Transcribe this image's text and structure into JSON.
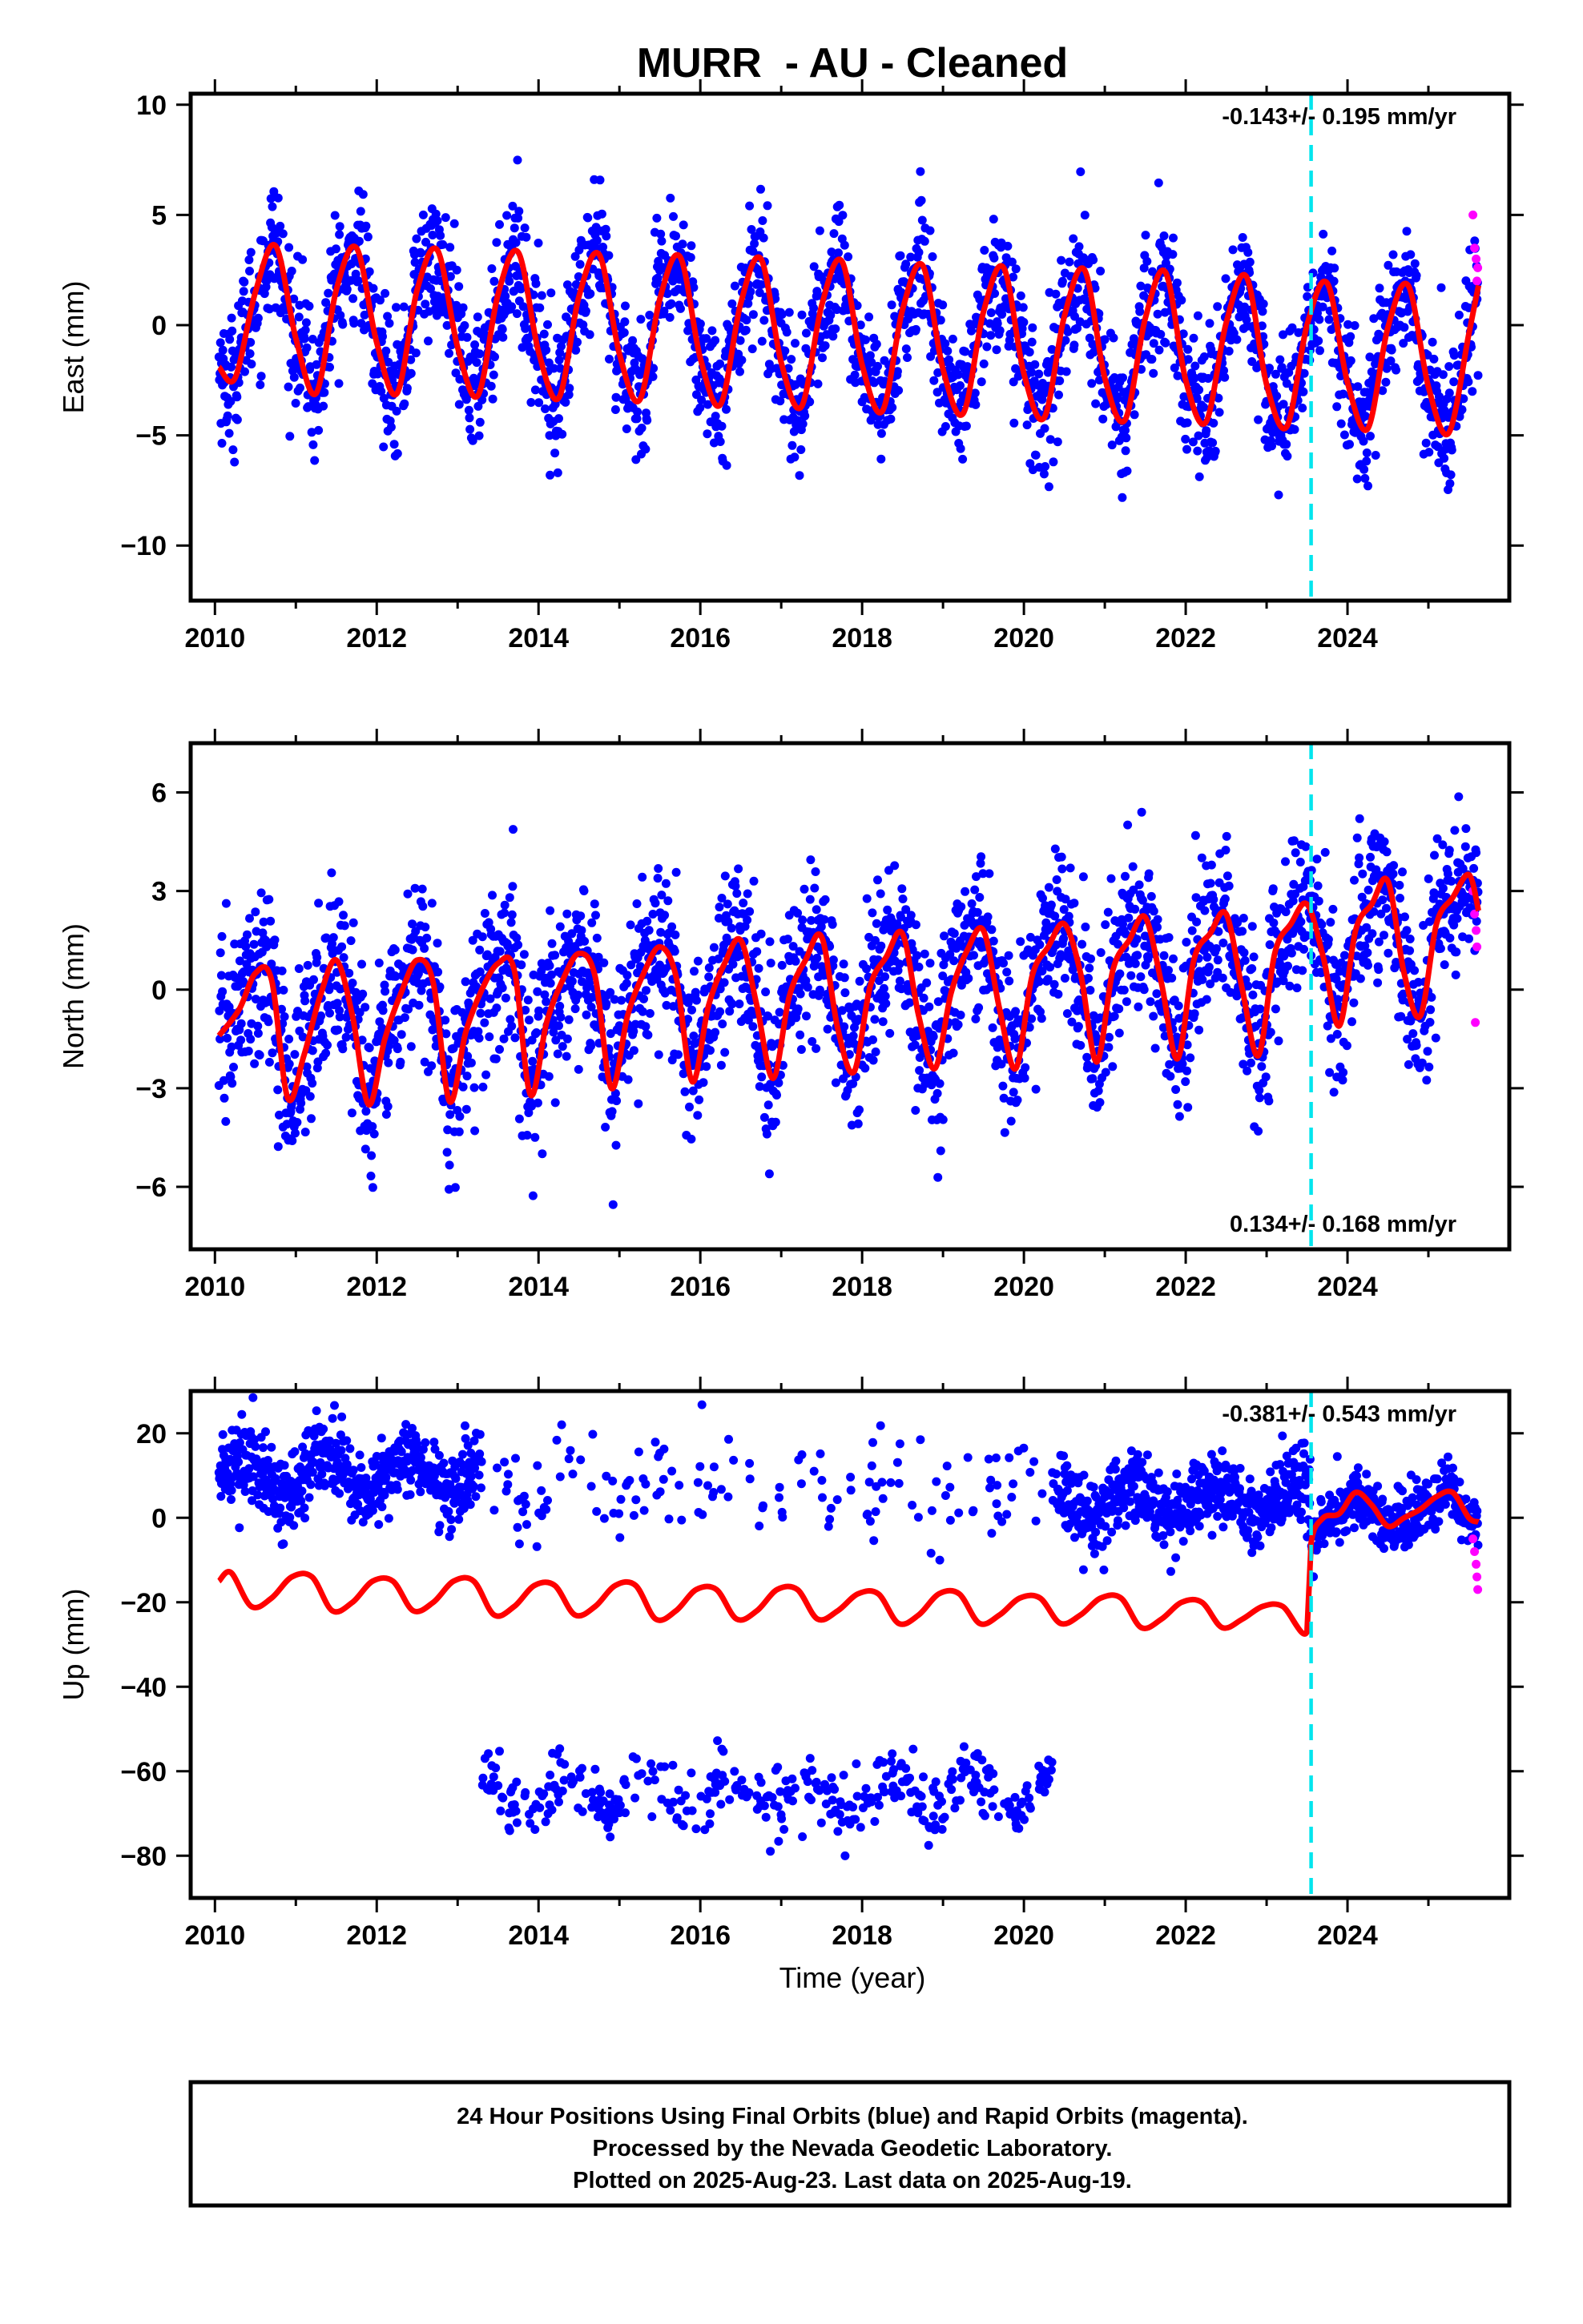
{
  "title": "MURR  - AU - Cleaned",
  "xlabel": "Time (year)",
  "footer": {
    "line1": "24 Hour Positions Using Final Orbits (blue) and Rapid Orbits (magenta).",
    "line2": "Processed by the Nevada Geodetic Laboratory.",
    "line3": "Plotted on 2025-Aug-23. Last data on 2025-Aug-19."
  },
  "colors": {
    "final_orbits": "#0000ff",
    "rapid_orbits": "#ff00ff",
    "model": "#ff0000",
    "equipment_change": "#00e5ee"
  },
  "chart_data": [
    {
      "type": "scatter",
      "name": "east",
      "ylabel": "East (mm)",
      "xlim": [
        2009.7,
        2026.0
      ],
      "ylim": [
        -12.5,
        10.5
      ],
      "xticks": [
        2010,
        2012,
        2014,
        2016,
        2018,
        2020,
        2022,
        2024
      ],
      "yticks": [
        -10,
        -5,
        0,
        5,
        10
      ],
      "rate_label": "-0.143+/- 0.195 mm/yr",
      "rate_position": "top-right",
      "discontinuity_year": 2023.55,
      "model": {
        "years": [
          2010.05,
          2010.25,
          2010.5,
          2010.75,
          2011.0,
          2011.25,
          2011.5,
          2011.75,
          2012.0,
          2012.25,
          2012.5,
          2012.75,
          2013.0,
          2013.25,
          2013.5,
          2013.75,
          2014.0,
          2014.25,
          2014.5,
          2014.75,
          2015.0,
          2015.25,
          2015.5,
          2015.75,
          2016.0,
          2016.25,
          2016.5,
          2016.75,
          2017.0,
          2017.25,
          2017.5,
          2017.75,
          2018.0,
          2018.25,
          2018.5,
          2018.75,
          2019.0,
          2019.25,
          2019.5,
          2019.75,
          2020.0,
          2020.25,
          2020.5,
          2020.75,
          2021.0,
          2021.25,
          2021.5,
          2021.75,
          2022.0,
          2022.25,
          2022.5,
          2022.75,
          2023.0,
          2023.25,
          2023.5,
          2023.75,
          2024.0,
          2024.25,
          2024.5,
          2024.75,
          2025.0,
          2025.25,
          2025.5,
          2025.62
        ],
        "values": [
          -1.9,
          -2.4,
          1.5,
          3.6,
          -0.6,
          -3.1,
          1.6,
          3.5,
          -0.8,
          -3.1,
          1.6,
          3.4,
          -1.0,
          -3.2,
          1.4,
          3.3,
          -1.2,
          -3.3,
          1.3,
          3.2,
          -1.3,
          -3.4,
          1.2,
          3.1,
          -1.5,
          -3.6,
          1.0,
          3.0,
          -1.7,
          -3.7,
          0.9,
          2.9,
          -1.8,
          -3.9,
          0.7,
          2.7,
          -2.0,
          -4.0,
          0.6,
          2.6,
          -2.2,
          -4.2,
          0.4,
          2.5,
          -2.4,
          -4.3,
          0.3,
          2.4,
          -2.5,
          -4.4,
          0.1,
          2.2,
          -2.7,
          -4.6,
          0.0,
          1.9,
          -2.6,
          -4.7,
          -0.1,
          1.8,
          -2.8,
          -4.9,
          -0.4,
          1.8
        ]
      },
      "rapid_points": [
        [
          2025.55,
          5.0
        ],
        [
          2025.57,
          3.5
        ],
        [
          2025.59,
          3.0
        ],
        [
          2025.61,
          2.6
        ],
        [
          2025.6,
          2.0
        ]
      ]
    },
    {
      "type": "scatter",
      "name": "north",
      "ylabel": "North (mm)",
      "xlim": [
        2009.7,
        2026.0
      ],
      "ylim": [
        -7.9,
        7.5
      ],
      "xticks": [
        2010,
        2012,
        2014,
        2016,
        2018,
        2020,
        2022,
        2024
      ],
      "yticks": [
        -6,
        -3,
        0,
        3,
        6
      ],
      "rate_label": "0.134+/- 0.168 mm/yr",
      "rate_position": "bottom-right",
      "discontinuity_year": 2023.55,
      "model": {
        "years": [
          2010.05,
          2010.3,
          2010.5,
          2010.7,
          2010.9,
          2011.1,
          2011.3,
          2011.5,
          2011.7,
          2011.9,
          2012.1,
          2012.3,
          2012.5,
          2012.7,
          2012.9,
          2013.1,
          2013.3,
          2013.5,
          2013.7,
          2013.9,
          2014.1,
          2014.3,
          2014.5,
          2014.7,
          2014.9,
          2015.1,
          2015.3,
          2015.5,
          2015.7,
          2015.9,
          2016.1,
          2016.3,
          2016.5,
          2016.7,
          2016.9,
          2017.1,
          2017.3,
          2017.5,
          2017.7,
          2017.9,
          2018.1,
          2018.3,
          2018.5,
          2018.7,
          2018.9,
          2019.1,
          2019.3,
          2019.5,
          2019.7,
          2019.9,
          2020.1,
          2020.3,
          2020.5,
          2020.7,
          2020.9,
          2021.1,
          2021.3,
          2021.5,
          2021.7,
          2021.9,
          2022.1,
          2022.3,
          2022.5,
          2022.7,
          2022.9,
          2023.1,
          2023.3,
          2023.5,
          2023.7,
          2023.9,
          2024.1,
          2024.3,
          2024.5,
          2024.7,
          2024.9,
          2025.1,
          2025.3,
          2025.5,
          2025.62
        ],
        "values": [
          -1.4,
          -0.6,
          0.5,
          0.3,
          -3.3,
          -2.0,
          -0.2,
          0.9,
          -0.8,
          -3.5,
          -1.5,
          -0.1,
          0.9,
          0.2,
          -3.4,
          -1.3,
          0.0,
          0.8,
          0.6,
          -3.2,
          -1.0,
          0.3,
          1.1,
          0.4,
          -3.0,
          -0.8,
          0.5,
          1.3,
          0.4,
          -2.8,
          -0.5,
          0.8,
          1.5,
          -0.5,
          -2.7,
          -0.2,
          0.9,
          1.6,
          -1.2,
          -2.5,
          0.1,
          1.0,
          1.7,
          -0.8,
          -2.4,
          -0.1,
          1.2,
          1.8,
          -0.6,
          -2.4,
          0.4,
          1.3,
          2.0,
          0.5,
          -2.2,
          0.6,
          1.5,
          2.2,
          0.2,
          -2.1,
          0.9,
          1.7,
          2.3,
          0.0,
          -2.0,
          1.1,
          2.0,
          2.6,
          1.0,
          -1.1,
          1.8,
          2.6,
          3.3,
          0.5,
          -0.8,
          2.0,
          2.8,
          3.5,
          2.4
        ]
      },
      "rapid_points": [
        [
          2025.55,
          3.0
        ],
        [
          2025.57,
          2.3
        ],
        [
          2025.59,
          1.8
        ],
        [
          2025.6,
          1.3
        ],
        [
          2025.58,
          -1.0
        ]
      ]
    },
    {
      "type": "scatter",
      "name": "up",
      "ylabel": "Up (mm)",
      "xlim": [
        2009.7,
        2026.0
      ],
      "ylim": [
        -90,
        30
      ],
      "xticks": [
        2010,
        2012,
        2014,
        2016,
        2018,
        2020,
        2022,
        2024
      ],
      "yticks": [
        -80,
        -60,
        -40,
        -20,
        0,
        20
      ],
      "rate_label": "-0.381+/- 0.543 mm/yr",
      "rate_position": "top-right",
      "discontinuity_year": 2023.55,
      "model": {
        "years": [
          2010.05,
          2010.2,
          2010.45,
          2010.7,
          2010.95,
          2011.2,
          2011.45,
          2011.7,
          2011.95,
          2012.2,
          2012.45,
          2012.7,
          2012.95,
          2013.2,
          2013.45,
          2013.7,
          2013.95,
          2014.2,
          2014.45,
          2014.7,
          2014.95,
          2015.2,
          2015.45,
          2015.7,
          2015.95,
          2016.2,
          2016.45,
          2016.7,
          2016.95,
          2017.2,
          2017.45,
          2017.7,
          2017.95,
          2018.2,
          2018.45,
          2018.7,
          2018.95,
          2019.2,
          2019.45,
          2019.7,
          2019.95,
          2020.2,
          2020.45,
          2020.7,
          2020.95,
          2021.2,
          2021.45,
          2021.7,
          2021.95,
          2022.2,
          2022.45,
          2022.7,
          2022.95,
          2023.2,
          2023.5,
          2023.55,
          2023.7,
          2023.9,
          2024.1,
          2024.3,
          2024.5,
          2024.7,
          2024.9,
          2025.1,
          2025.3,
          2025.5,
          2025.62
        ],
        "values": [
          -15,
          -13,
          -21,
          -19,
          -14,
          -14,
          -22,
          -20,
          -15,
          -15,
          -22,
          -20,
          -15,
          -15,
          -23,
          -21,
          -16,
          -16,
          -23,
          -21,
          -16,
          -16,
          -24,
          -22,
          -17,
          -17,
          -24,
          -22,
          -17,
          -17,
          -24,
          -22,
          -18,
          -18,
          -25,
          -23,
          -18,
          -18,
          -25,
          -23,
          -19,
          -19,
          -25,
          -23,
          -19,
          -19,
          -26,
          -24,
          -20,
          -20,
          -26,
          -24,
          -21,
          -21,
          -27,
          -6,
          0,
          1,
          6,
          3,
          -2,
          0,
          2,
          5,
          6,
          0,
          -1
        ]
      },
      "rapid_points": [
        [
          2025.55,
          -5
        ],
        [
          2025.57,
          -8
        ],
        [
          2025.59,
          -11
        ],
        [
          2025.6,
          -14
        ],
        [
          2025.61,
          -17
        ]
      ]
    }
  ]
}
